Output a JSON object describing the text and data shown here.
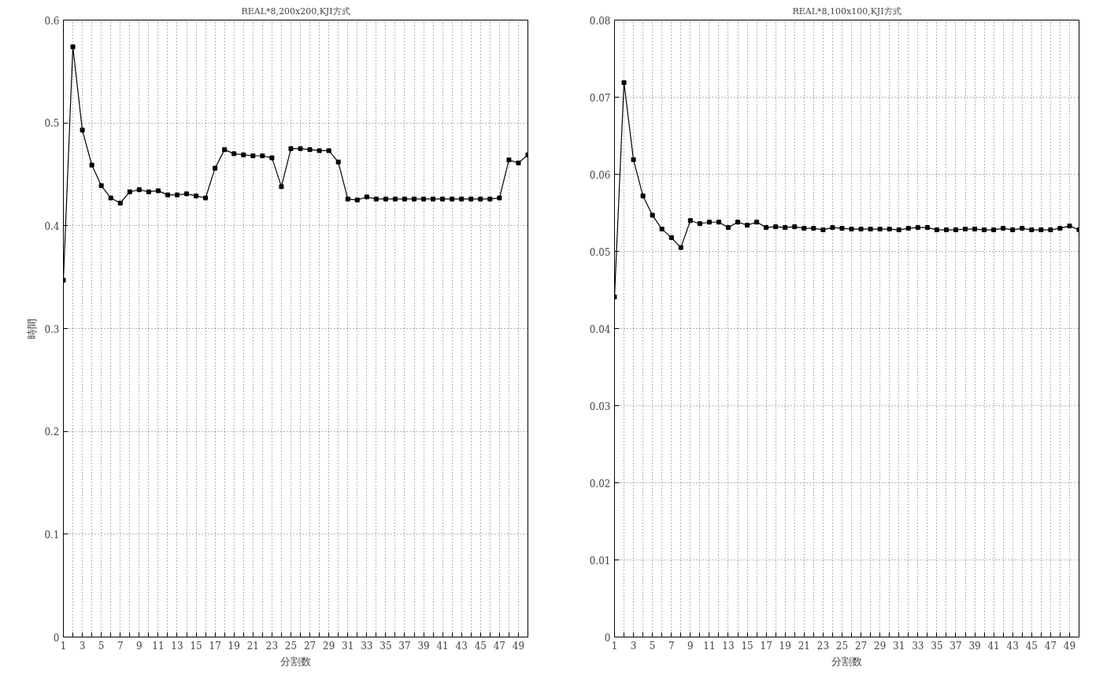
{
  "chart_data": [
    {
      "type": "line",
      "title": "REAL*8,200x200,KJI方式",
      "xlabel": "分割数",
      "ylabel": "時間",
      "x": [
        1,
        2,
        3,
        4,
        5,
        6,
        7,
        8,
        9,
        10,
        11,
        12,
        13,
        14,
        15,
        16,
        17,
        18,
        19,
        20,
        21,
        22,
        23,
        24,
        25,
        26,
        27,
        28,
        29,
        30,
        31,
        32,
        33,
        34,
        35,
        36,
        37,
        38,
        39,
        40,
        41,
        42,
        43,
        44,
        45,
        46,
        47,
        48,
        49,
        50
      ],
      "series": [
        {
          "color": "#000000",
          "values": [
            0.347,
            0.574,
            0.493,
            0.459,
            0.439,
            0.427,
            0.422,
            0.433,
            0.435,
            0.433,
            0.434,
            0.43,
            0.43,
            0.431,
            0.429,
            0.427,
            0.456,
            0.474,
            0.47,
            0.469,
            0.468,
            0.468,
            0.466,
            0.438,
            0.475,
            0.475,
            0.474,
            0.473,
            0.473,
            0.462,
            0.426,
            0.425,
            0.428,
            0.426,
            0.426,
            0.426,
            0.426,
            0.426,
            0.426,
            0.426,
            0.426,
            0.426,
            0.426,
            0.426,
            0.426,
            0.426,
            0.427,
            0.464,
            0.461,
            0.469
          ]
        }
      ],
      "xlim": [
        1,
        50
      ],
      "ylim": [
        0,
        0.6
      ],
      "yticks": [
        0,
        0.1,
        0.2,
        0.3,
        0.4,
        0.5,
        0.6
      ],
      "xticks": [
        1,
        {
          "value": 2,
          "label": null
        },
        3,
        {
          "value": 4,
          "label": null
        },
        5,
        {
          "value": 6,
          "label": null
        },
        7,
        {
          "value": 8,
          "label": null
        },
        9,
        {
          "value": 10,
          "label": null
        },
        11,
        {
          "value": 12,
          "label": null
        },
        13,
        {
          "value": 14,
          "label": null
        },
        15,
        {
          "value": 16,
          "label": null
        },
        17,
        {
          "value": 18,
          "label": null
        },
        19,
        {
          "value": 20,
          "label": null
        },
        21,
        {
          "value": 22,
          "label": null
        },
        23,
        {
          "value": 24,
          "label": null
        },
        25,
        {
          "value": 26,
          "label": null
        },
        27,
        {
          "value": 28,
          "label": null
        },
        29,
        {
          "value": 30,
          "label": null
        },
        31,
        {
          "value": 32,
          "label": null
        },
        33,
        {
          "value": 34,
          "label": null
        },
        35,
        {
          "value": 36,
          "label": null
        },
        37,
        {
          "value": 38,
          "label": null
        },
        39,
        {
          "value": 40,
          "label": null
        },
        41,
        {
          "value": 42,
          "label": null
        },
        43,
        {
          "value": 44,
          "label": null
        },
        45,
        {
          "value": 46,
          "label": null
        },
        47,
        {
          "value": 48,
          "label": null
        },
        49,
        {
          "value": 50,
          "label": null
        }
      ],
      "grid": true,
      "marker": "square",
      "line_style": "solid"
    },
    {
      "type": "line",
      "title": "REAL*8,100x100,KJI方式",
      "xlabel": "分割数",
      "x": [
        1,
        2,
        3,
        4,
        5,
        6,
        7,
        8,
        9,
        10,
        11,
        12,
        13,
        14,
        15,
        16,
        17,
        18,
        19,
        20,
        21,
        22,
        23,
        24,
        25,
        26,
        27,
        28,
        29,
        30,
        31,
        32,
        33,
        34,
        35,
        36,
        37,
        38,
        39,
        40,
        41,
        42,
        43,
        44,
        45,
        46,
        47,
        48,
        49,
        50
      ],
      "series": [
        {
          "color": "#000000",
          "values": [
            0.0441,
            0.0719,
            0.0619,
            0.0572,
            0.0547,
            0.0529,
            0.0518,
            0.0505,
            0.054,
            0.0536,
            0.0538,
            0.0538,
            0.0531,
            0.0538,
            0.0534,
            0.0538,
            0.0531,
            0.0532,
            0.0531,
            0.0532,
            0.053,
            0.053,
            0.0528,
            0.0531,
            0.053,
            0.0529,
            0.0529,
            0.0529,
            0.0529,
            0.0529,
            0.0528,
            0.053,
            0.0531,
            0.0531,
            0.0528,
            0.0528,
            0.0528,
            0.0529,
            0.0529,
            0.0528,
            0.0528,
            0.053,
            0.0528,
            0.053,
            0.0528,
            0.0528,
            0.0528,
            0.053,
            0.0533,
            0.0528
          ]
        }
      ],
      "xlim": [
        1,
        50
      ],
      "ylim": [
        0,
        0.08
      ],
      "yticks": [
        0,
        0.01,
        0.02,
        0.03,
        0.04,
        0.05,
        0.06,
        0.07,
        0.08
      ],
      "xticks": [
        1,
        {
          "value": 2,
          "label": null
        },
        3,
        {
          "value": 4,
          "label": null
        },
        5,
        {
          "value": 6,
          "label": null
        },
        7,
        {
          "value": 8,
          "label": null
        },
        9,
        {
          "value": 10,
          "label": null
        },
        11,
        {
          "value": 12,
          "label": null
        },
        13,
        {
          "value": 14,
          "label": null
        },
        15,
        {
          "value": 16,
          "label": null
        },
        17,
        {
          "value": 18,
          "label": null
        },
        19,
        {
          "value": 20,
          "label": null
        },
        21,
        {
          "value": 22,
          "label": null
        },
        23,
        {
          "value": 24,
          "label": null
        },
        25,
        {
          "value": 26,
          "label": null
        },
        27,
        {
          "value": 28,
          "label": null
        },
        29,
        {
          "value": 30,
          "label": null
        },
        31,
        {
          "value": 32,
          "label": null
        },
        33,
        {
          "value": 34,
          "label": null
        },
        35,
        {
          "value": 36,
          "label": null
        },
        37,
        {
          "value": 38,
          "label": null
        },
        39,
        {
          "value": 40,
          "label": null
        },
        41,
        {
          "value": 42,
          "label": null
        },
        43,
        {
          "value": 44,
          "label": null
        },
        45,
        {
          "value": 46,
          "label": null
        },
        47,
        {
          "value": 48,
          "label": null
        },
        49,
        {
          "value": 50,
          "label": null
        }
      ],
      "grid": true,
      "marker": "square",
      "line_style": "solid"
    }
  ]
}
